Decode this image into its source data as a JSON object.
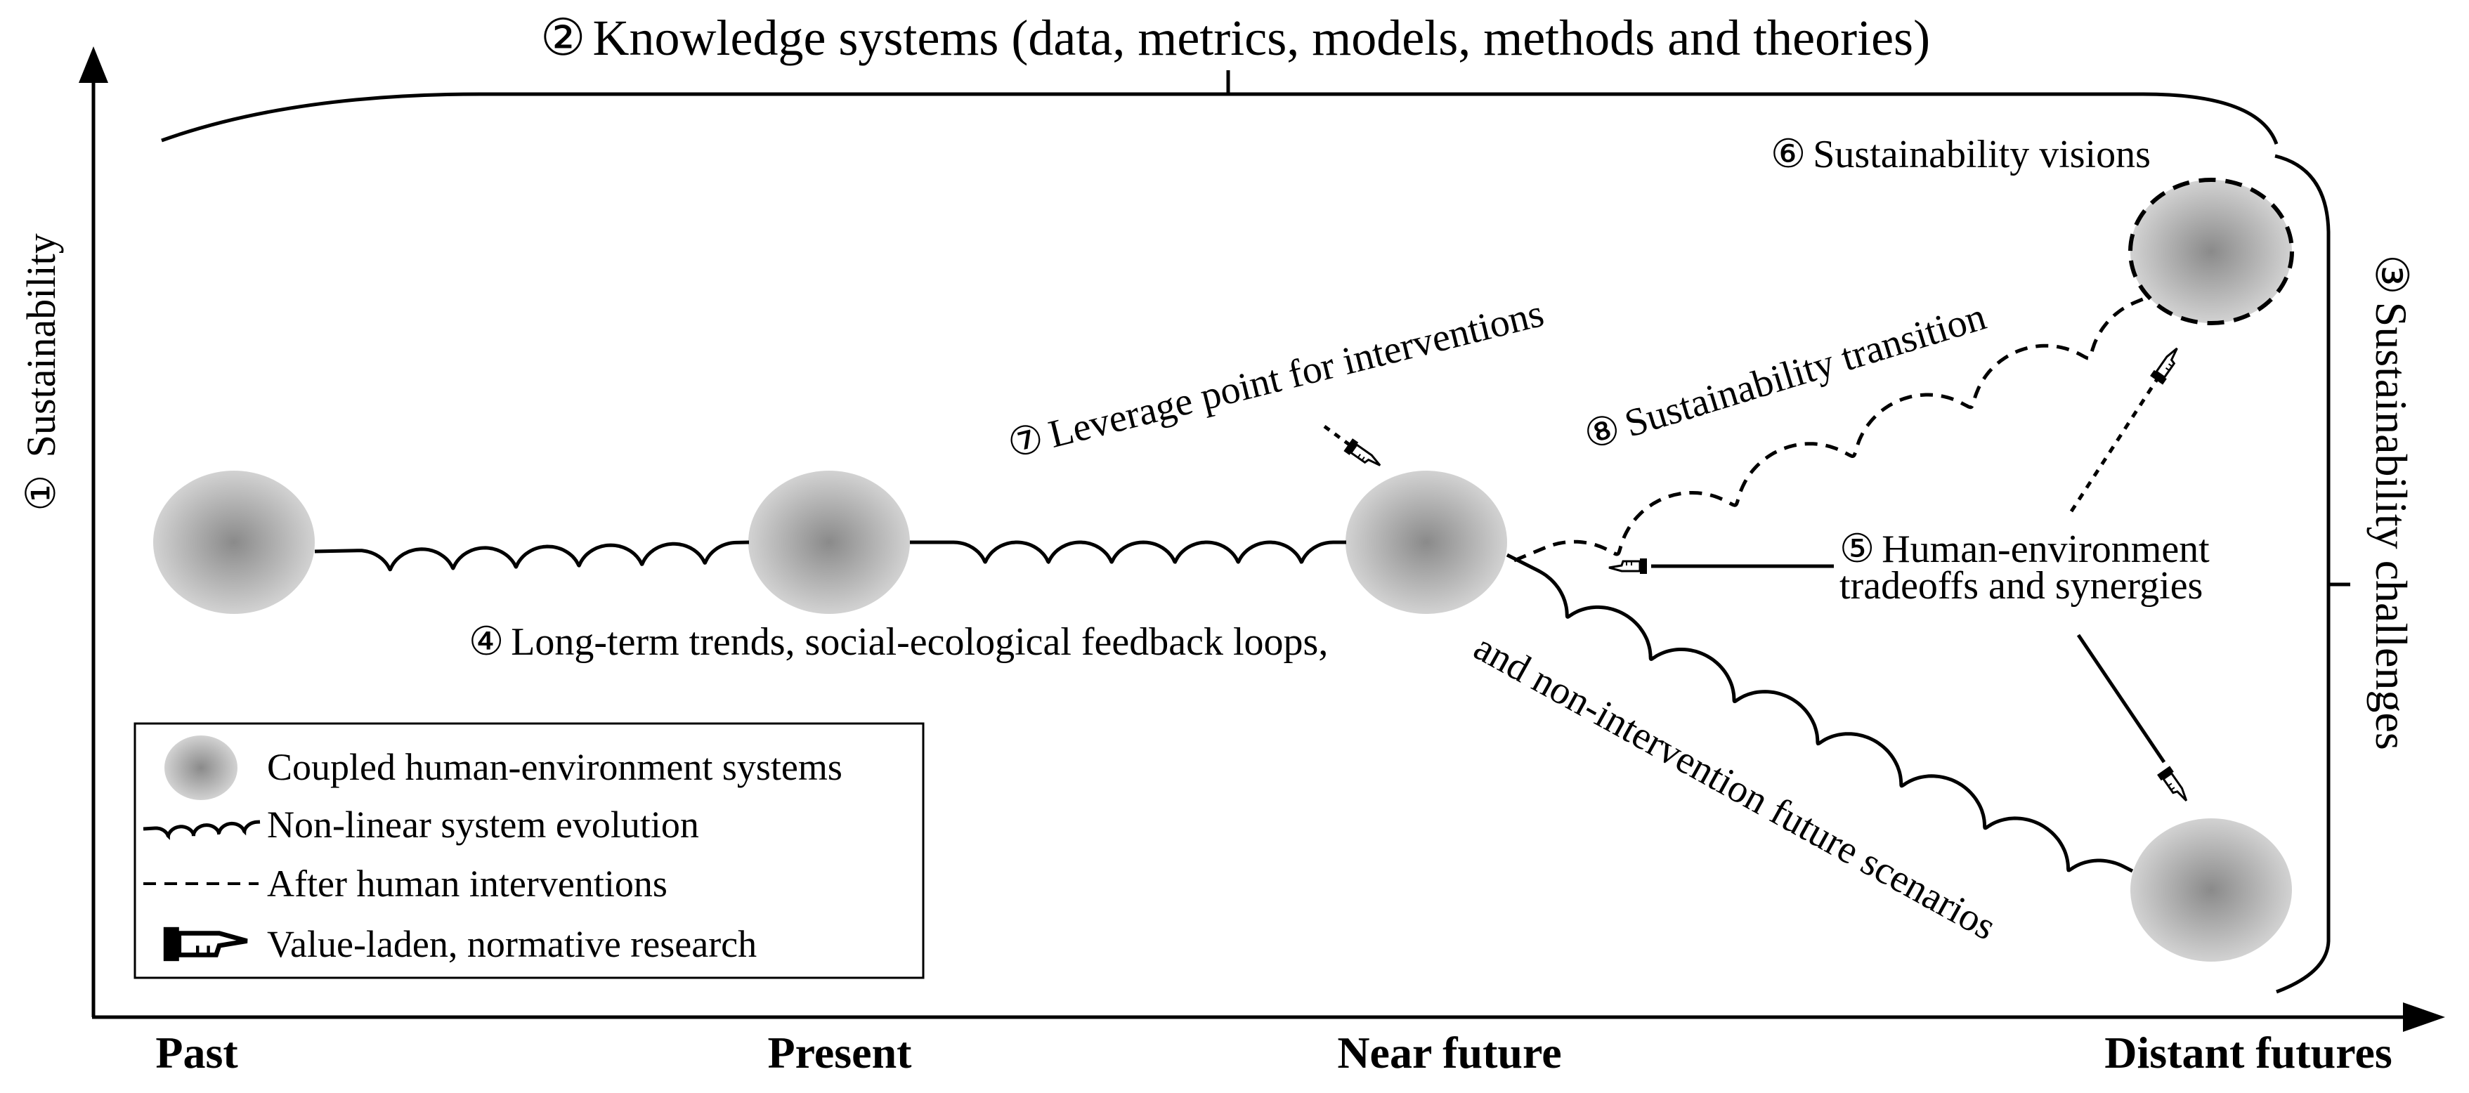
{
  "axis": {
    "y_label_num": "①",
    "y_label": "Sustainability",
    "x_ticks": [
      "Past",
      "Present",
      "Near future",
      "Distant futures"
    ]
  },
  "labels": {
    "knowledge": {
      "num": "②",
      "text": "Knowledge systems (data, metrics, models, methods and theories)"
    },
    "challenges": {
      "num": "③",
      "text": "Sustainability challenges"
    },
    "trends": {
      "num": "④",
      "text_a": "Long-term trends, social-ecological feedback loops,",
      "text_b": "and non-intervention future scenarios"
    },
    "tradeoffs": {
      "num": "⑤",
      "line1": "Human-environment",
      "line2": "tradeoffs and synergies"
    },
    "visions": {
      "num": "⑥",
      "text": "Sustainability visions"
    },
    "leverage": {
      "num": "⑦",
      "text": "Leverage point for interventions"
    },
    "transition": {
      "num": "⑧",
      "text": "Sustainability transition"
    }
  },
  "legend": {
    "items": [
      {
        "label": "Coupled human-environment systems"
      },
      {
        "label": "Non-linear system evolution"
      },
      {
        "label": "After human interventions"
      },
      {
        "label": "Value-laden, normative research"
      }
    ]
  },
  "colors": {
    "node_center": "#8a8a8a",
    "node_edge": "#d4d4d4",
    "stroke": "#000000"
  }
}
